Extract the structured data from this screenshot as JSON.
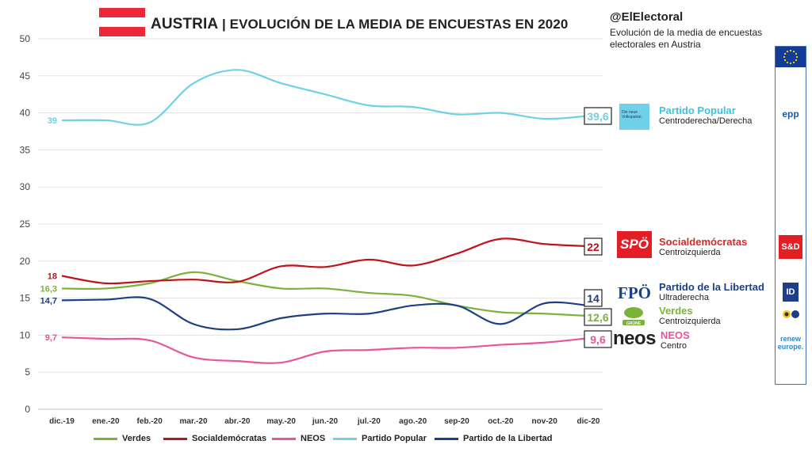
{
  "header": {
    "country": "AUSTRIA",
    "separator": " | ",
    "title": "EVOLUCIÓN DE LA MEDIA DE ENCUESTAS EN 2020",
    "handle": "@ElElectoral",
    "subtitle": "Evolución de la media de encuestas electorales en Austria"
  },
  "colors": {
    "flag_red": "#ed2939",
    "verdes": "#7ab23b",
    "socialdemocratas": "#c0131b",
    "neos": "#e8559a",
    "partido_popular": "#6fd1e7",
    "fpo": "#1d3f86"
  },
  "chart_data": {
    "type": "line",
    "categories": [
      "dic.-19",
      "ene.-20",
      "feb.-20",
      "mar.-20",
      "abr.-20",
      "may.-20",
      "jun.-20",
      "jul.-20",
      "ago.-20",
      "sep-20",
      "oct.-20",
      "nov-20",
      "dic-20"
    ],
    "ylim": [
      0,
      50
    ],
    "yticks": [
      0,
      5,
      10,
      15,
      20,
      25,
      30,
      35,
      40,
      45,
      50
    ],
    "grid": true,
    "legend_position": "bottom",
    "series": [
      {
        "key": "verdes",
        "name": "Verdes",
        "color": "#7ab23b",
        "values": [
          16.3,
          16.3,
          17.0,
          18.5,
          17.3,
          16.3,
          16.3,
          15.7,
          15.3,
          14.0,
          13.1,
          12.9,
          12.6
        ],
        "start_label": "16,3",
        "end_label": "12,6"
      },
      {
        "key": "socialdemocratas",
        "name": "Socialdemócratas",
        "color": "#c0131b",
        "values": [
          18.0,
          17.0,
          17.3,
          17.5,
          17.2,
          19.3,
          19.2,
          20.2,
          19.4,
          21.0,
          23.0,
          22.3,
          22.0
        ],
        "start_label": "18",
        "end_label": "22"
      },
      {
        "key": "neos",
        "name": "NEOS",
        "color": "#e8559a",
        "values": [
          9.7,
          9.5,
          9.3,
          7.0,
          6.5,
          6.3,
          7.8,
          8.0,
          8.3,
          8.3,
          8.7,
          9.0,
          9.6
        ],
        "start_label": "9,7",
        "end_label": "9,6"
      },
      {
        "key": "partido_popular",
        "name": "Partido Popular",
        "color": "#6fd1e7",
        "values": [
          39.0,
          39.0,
          38.7,
          44.0,
          45.8,
          44.0,
          42.5,
          41.0,
          40.8,
          39.8,
          40.0,
          39.2,
          39.6
        ],
        "start_label": "39",
        "end_label": "39,6"
      },
      {
        "key": "fpo",
        "name": "Partido de la Libertad",
        "color": "#1d3f86",
        "values": [
          14.7,
          14.8,
          14.9,
          11.5,
          10.8,
          12.3,
          12.9,
          12.9,
          14.0,
          14.0,
          11.5,
          14.3,
          14.0
        ],
        "start_label": "14,7",
        "end_label": "14"
      }
    ]
  },
  "parties": [
    {
      "key": "partido_popular",
      "name": "Partido Popular",
      "ideology": "Centroderecha/Derecha",
      "logo_text": "Die neue Volkspartei.",
      "group": "epp"
    },
    {
      "key": "socialdemocratas",
      "name": "Socialdemócratas",
      "ideology": "Centroizquierda",
      "logo_text": "SPÖ",
      "group": "S&D"
    },
    {
      "key": "fpo",
      "name": "Partido de la Libertad",
      "ideology": "Ultraderecha",
      "logo_text": "FPÖ",
      "group": "ID"
    },
    {
      "key": "verdes",
      "name": "Verdes",
      "ideology": "Centroizquierda",
      "logo_text": "GRÜNE",
      "group": "Greens/EFA"
    },
    {
      "key": "neos",
      "name": "NEOS",
      "ideology": "Centro",
      "logo_text": "neos",
      "group": "renew europe."
    }
  ],
  "groups": {
    "epp": "epp",
    "sd": "S&D",
    "id": "ID",
    "renew": "renew europe."
  }
}
